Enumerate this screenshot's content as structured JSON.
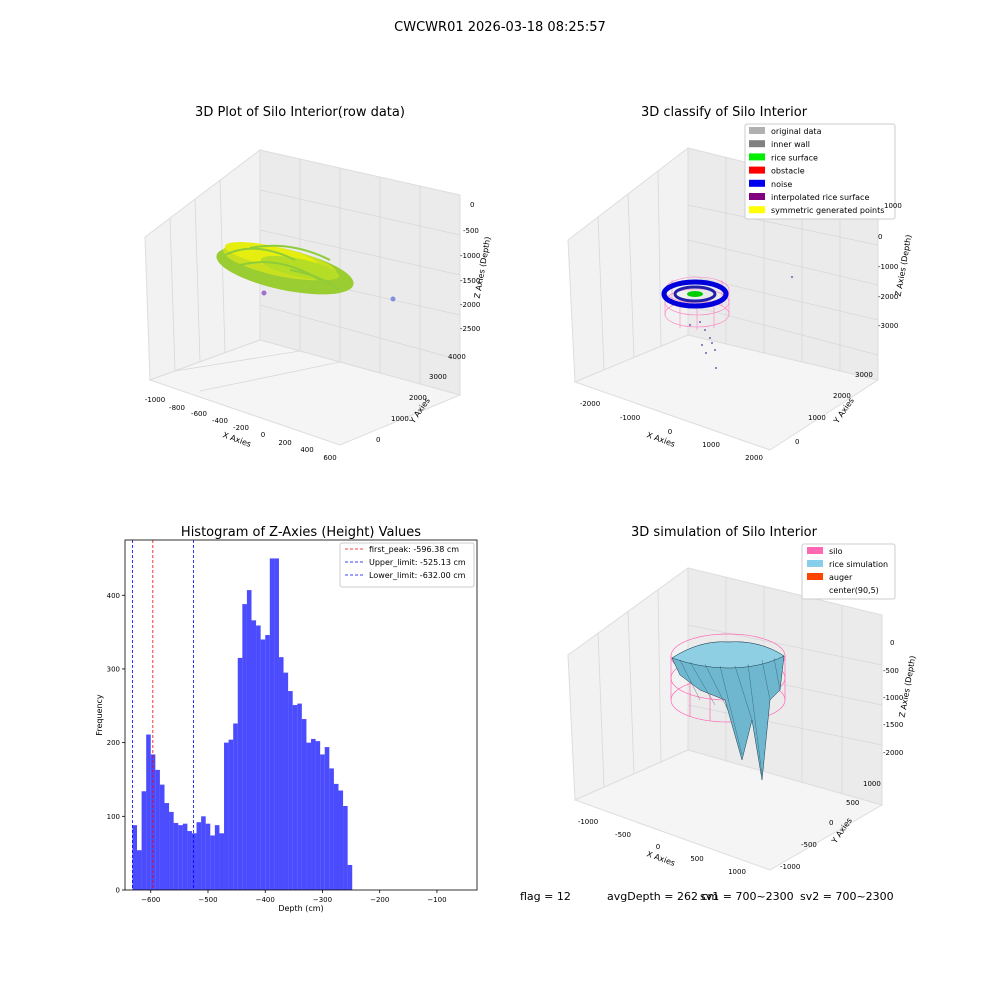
{
  "figure_title": "CWCWR01 2026-03-18 08:25:57",
  "panels": {
    "raw": {
      "title": "3D Plot of Silo Interior(row data)",
      "xlabel": "X Axies",
      "ylabel": "Y Axies",
      "zlabel": "Z Axies (Depth)",
      "x_ticks": [
        "-1000",
        "-800",
        "-600",
        "-400",
        "-200",
        "0",
        "200",
        "400",
        "600"
      ],
      "y_ticks": [
        "0",
        "1000",
        "2000",
        "3000",
        "4000"
      ],
      "z_ticks": [
        "0",
        "-500",
        "-1000",
        "-1500",
        "-2000",
        "-2500"
      ]
    },
    "classify": {
      "title": "3D classify of Silo Interior",
      "xlabel": "X Axies",
      "ylabel": "Y Axies",
      "zlabel": "Z Axies (Depth)",
      "x_ticks": [
        "-2000",
        "-1000",
        "0",
        "1000",
        "2000"
      ],
      "y_ticks": [
        "0",
        "1000",
        "2000",
        "3000"
      ],
      "z_ticks": [
        "1000",
        "0",
        "-1000",
        "-2000",
        "-3000"
      ],
      "legend": [
        {
          "label": "original data",
          "color": "#b0b0b0"
        },
        {
          "label": "inner wall",
          "color": "#808080"
        },
        {
          "label": "rice surface",
          "color": "#00ee00"
        },
        {
          "label": "obstacle",
          "color": "#ff0000"
        },
        {
          "label": "noise",
          "color": "#0000ee"
        },
        {
          "label": "interpolated rice surface",
          "color": "#800080"
        },
        {
          "label": "symmetric generated points",
          "color": "#ffff00"
        }
      ]
    },
    "simulation": {
      "title": "3D simulation of Silo Interior",
      "xlabel": "X Axies",
      "ylabel": "Y Axies",
      "zlabel": "Z Axies (Depth)",
      "x_ticks": [
        "-1000",
        "-500",
        "0",
        "500",
        "1000"
      ],
      "y_ticks": [
        "-1000",
        "-500",
        "0",
        "500",
        "1000"
      ],
      "z_ticks": [
        "0",
        "-500",
        "-1000",
        "-1500",
        "-2000"
      ],
      "legend": [
        {
          "label": "silo",
          "color": "#ff69b4"
        },
        {
          "label": "rice simulation",
          "color": "#87ceeb"
        },
        {
          "label": "auger",
          "color": "#ff4500"
        },
        {
          "label": "center(90,5)",
          "color": ""
        }
      ]
    }
  },
  "status_line": {
    "flag": "flag = 12",
    "avg": "avgDepth = 262 cm",
    "sv1": "sv1 = 700~2300",
    "sv2": "sv2 = 700~2300"
  },
  "chart_data": {
    "type": "bar",
    "title": "Histogram of Z-Axies (Height) Values",
    "xlabel": "Depth (cm)",
    "ylabel": "Frequency",
    "xlim": [
      -645,
      -30
    ],
    "ylim": [
      0,
      475
    ],
    "x_ticks": [
      -600,
      -500,
      -400,
      -300,
      -200,
      -100
    ],
    "y_ticks": [
      0,
      100,
      200,
      300,
      400
    ],
    "bar_color": "#0000ff",
    "bin_start": -632,
    "bin_width": 8,
    "values": [
      88,
      54,
      134,
      211,
      184,
      163,
      143,
      118,
      106,
      91,
      88,
      90,
      80,
      77,
      92,
      100,
      90,
      74,
      88,
      77,
      200,
      204,
      226,
      315,
      388,
      407,
      366,
      359,
      340,
      346,
      450,
      450,
      316,
      295,
      270,
      251,
      253,
      232,
      200,
      205,
      202,
      184,
      194,
      165,
      144,
      135,
      114,
      34
    ],
    "vlines": [
      {
        "x": -596.38,
        "color": "#ff0000",
        "label": "first_peak: -596.38 cm"
      },
      {
        "x": -525.13,
        "color": "#0000ff",
        "label": "Upper_limit: -525.13 cm"
      },
      {
        "x": -632.0,
        "color": "#0000ff",
        "label": "Lower_limit: -632.00 cm"
      }
    ],
    "legend_position": "upper right"
  }
}
